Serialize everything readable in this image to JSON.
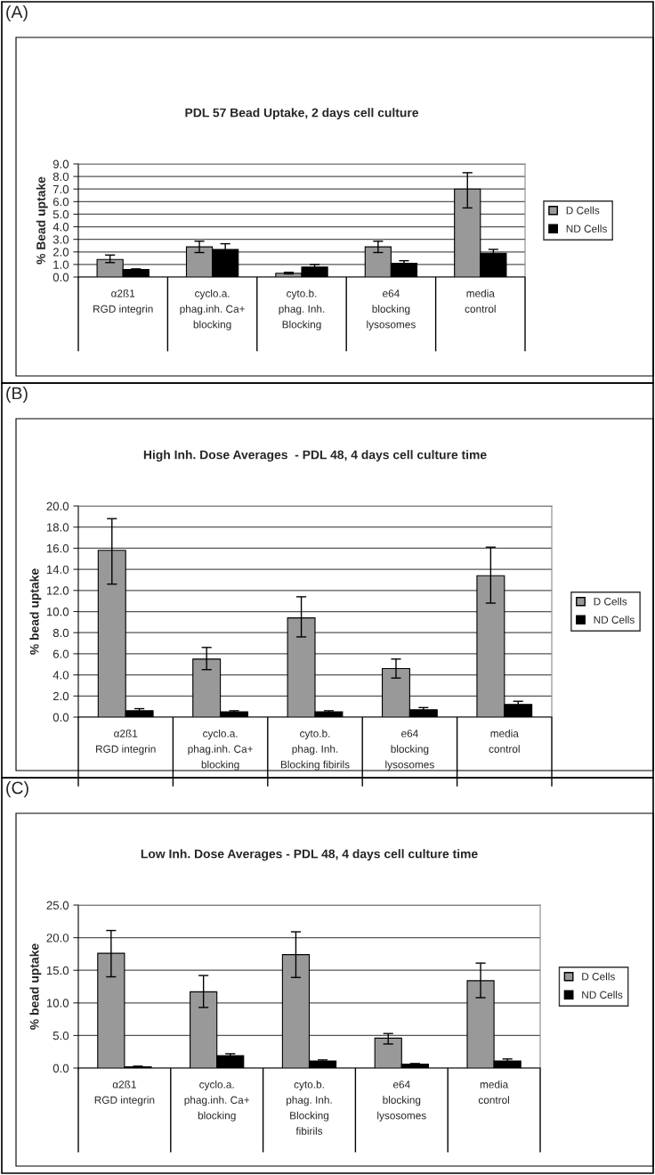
{
  "chart_data": [
    {
      "type": "bar",
      "title": "PDL 57 Bead Uptake, 2 days cell culture",
      "ylabel": "% Bead uptake",
      "annotations": [
        "(A)"
      ],
      "categories": [
        "α2ß1\nRGD integrin",
        "cyclo.a.\nphag.inh. Ca+\nblocking",
        "cyto.b.\nphag. Inh.\nBlocking",
        "e64\nblocking\nlysosomes",
        "media\ncontrol"
      ],
      "series": [
        {
          "name": "D Cells",
          "color": "#999999",
          "values": [
            1.4,
            2.4,
            0.3,
            2.4,
            7.0
          ],
          "errors": [
            [
              1.15,
              1.75
            ],
            [
              1.95,
              2.85
            ],
            [
              0.25,
              0.38
            ],
            [
              1.95,
              2.85
            ],
            [
              5.5,
              8.3
            ]
          ]
        },
        {
          "name": "ND Cells",
          "color": "#000000",
          "values": [
            0.6,
            2.2,
            0.8,
            1.1,
            1.9
          ],
          "errors": [
            0.05,
            0.45,
            0.2,
            0.2,
            0.3
          ]
        }
      ],
      "ylim": [
        0,
        9
      ],
      "yticks": [
        {
          "value": 0,
          "label": "0.0"
        },
        {
          "value": 1,
          "label": "1.0"
        },
        {
          "value": 2,
          "label": "2.0"
        },
        {
          "value": 3,
          "label": "3.0"
        },
        {
          "value": 4,
          "label": "4.0"
        },
        {
          "value": 5,
          "label": "5.0"
        },
        {
          "value": 6,
          "label": "6.0"
        },
        {
          "value": 7,
          "label": "7.0"
        },
        {
          "value": 8,
          "label": "8.0"
        },
        {
          "value": 9,
          "label": "9.0"
        }
      ],
      "grid": "y",
      "legend": "right"
    },
    {
      "type": "bar",
      "title": "High Inh. Dose Averages  - PDL 48, 4 days cell culture time",
      "ylabel": "% bead uptake",
      "annotations": [
        "(B)"
      ],
      "categories": [
        "α2ß1\nRGD integrin",
        "cyclo.a.\nphag.inh. Ca+\nblocking",
        "cyto.b.\nphag. Inh.\nBlocking fibirils",
        "e64\nblocking\nlysosomes",
        "media\ncontrol"
      ],
      "series": [
        {
          "name": "D Cells",
          "color": "#999999",
          "values": [
            15.8,
            5.5,
            9.4,
            4.6,
            13.4
          ],
          "errors": [
            [
              12.6,
              18.8
            ],
            [
              4.5,
              6.6
            ],
            [
              7.6,
              11.4
            ],
            [
              3.7,
              5.5
            ],
            [
              10.8,
              16.1
            ]
          ]
        },
        {
          "name": "ND Cells",
          "color": "#000000",
          "values": [
            0.6,
            0.5,
            0.5,
            0.7,
            1.2
          ],
          "errors": [
            0.2,
            0.1,
            0.1,
            0.2,
            0.3
          ]
        }
      ],
      "ylim": [
        0,
        20
      ],
      "yticks": [
        {
          "value": 0,
          "label": "0.0"
        },
        {
          "value": 2,
          "label": "2.0"
        },
        {
          "value": 4,
          "label": "4.0"
        },
        {
          "value": 6,
          "label": "6.0"
        },
        {
          "value": 8,
          "label": "8.0"
        },
        {
          "value": 10,
          "label": "10.0"
        },
        {
          "value": 12,
          "label": "12.0"
        },
        {
          "value": 14,
          "label": "14.0"
        },
        {
          "value": 16,
          "label": "16.0"
        },
        {
          "value": 18,
          "label": "18.0"
        },
        {
          "value": 20,
          "label": "20.0"
        }
      ],
      "grid": "y",
      "legend": "right"
    },
    {
      "type": "bar",
      "title": "Low Inh. Dose Averages - PDL 48, 4 days cell culture time",
      "ylabel": "% bead uptake",
      "annotations": [
        "(C)"
      ],
      "categories": [
        "α2ß1\nRGD integrin",
        "cyclo.a.\nphag.inh. Ca+\nblocking",
        "cyto.b.\nphag. Inh.\nBlocking\nfibirils",
        "e64\nblocking\nlysosomes",
        "media\ncontrol"
      ],
      "series": [
        {
          "name": "D Cells",
          "color": "#999999",
          "values": [
            17.6,
            11.7,
            17.4,
            4.6,
            13.4
          ],
          "errors": [
            [
              14.0,
              21.1
            ],
            [
              9.3,
              14.2
            ],
            [
              13.9,
              20.9
            ],
            [
              3.7,
              5.3
            ],
            [
              10.8,
              16.1
            ]
          ]
        },
        {
          "name": "ND Cells",
          "color": "#000000",
          "values": [
            0.2,
            1.9,
            1.1,
            0.6,
            1.1
          ],
          "errors": [
            0.1,
            0.3,
            0.15,
            0.1,
            0.3
          ]
        }
      ],
      "ylim": [
        0,
        25
      ],
      "yticks": [
        {
          "value": 0,
          "label": "0.0"
        },
        {
          "value": 5,
          "label": "5.0"
        },
        {
          "value": 10,
          "label": "10.0"
        },
        {
          "value": 15,
          "label": "15.0"
        },
        {
          "value": 20,
          "label": "20.0"
        },
        {
          "value": 25,
          "label": "25.0"
        }
      ],
      "grid": "y",
      "legend": "right"
    }
  ]
}
